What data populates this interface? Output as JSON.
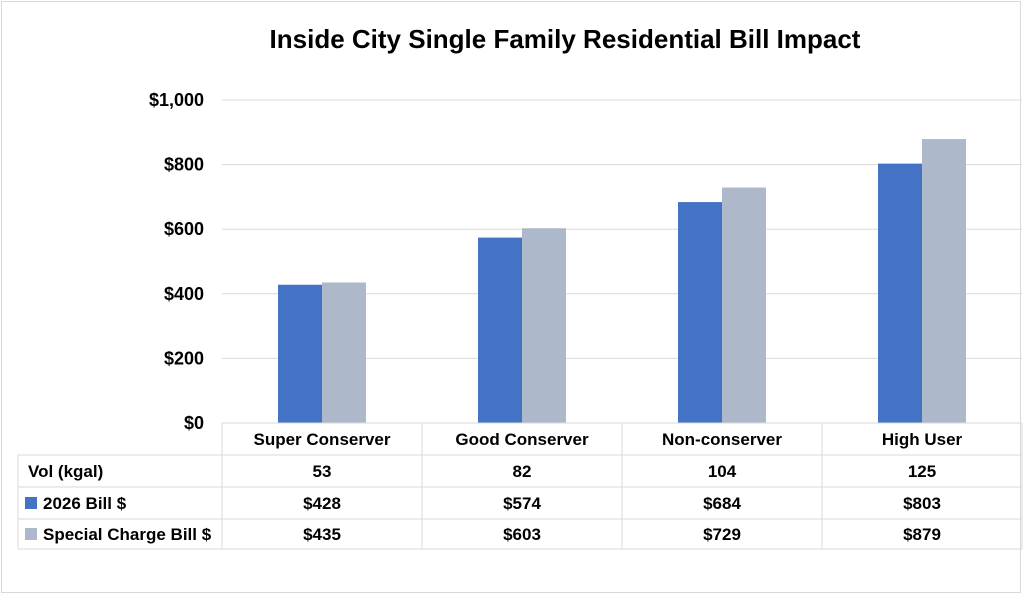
{
  "chart_data": {
    "type": "bar",
    "title": "Inside City Single Family Residential Bill Impact",
    "categories": [
      "Super Conserver",
      "Good Conserver",
      "Non-conserver",
      "High User"
    ],
    "series": [
      {
        "name": "2026 Bill $",
        "color": "#4472c4",
        "values": [
          428,
          574,
          684,
          803
        ],
        "labels": [
          "$428",
          "$574",
          "$684",
          "$803"
        ]
      },
      {
        "name": "Special Charge Bill $",
        "color": "#adb9ca",
        "values": [
          435,
          603,
          729,
          879
        ],
        "labels": [
          "$435",
          "$603",
          "$729",
          "$879"
        ]
      }
    ],
    "extra_row": {
      "name": "Vol (kgal)",
      "values": [
        "53",
        "82",
        "104",
        "125"
      ]
    },
    "ylim": [
      0,
      1000
    ],
    "yticks": [
      0,
      200,
      400,
      600,
      800,
      1000
    ],
    "ytick_labels": [
      "$0",
      "$200",
      "$400",
      "$600",
      "$800",
      "$1,000"
    ],
    "grid": true,
    "legend": "data-table"
  }
}
